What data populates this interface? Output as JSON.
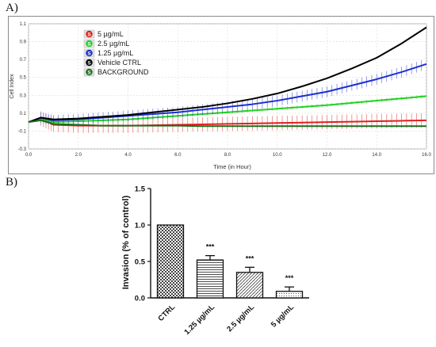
{
  "panels": {
    "a": "A)",
    "b": "B)"
  },
  "chart_data": [
    {
      "type": "line",
      "xlabel": "Time (in Hour)",
      "ylabel": "Cell Index",
      "xlim": [
        0,
        16
      ],
      "ylim": [
        -0.3,
        1.1
      ],
      "xticks": [
        "0.0",
        "2.0",
        "4.0",
        "6.0",
        "8.0",
        "10.0",
        "12.0",
        "14.0",
        "16.0"
      ],
      "yticks": [
        "-0.3",
        "-0.1",
        "0.1",
        "0.3",
        "0.5",
        "0.7",
        "0.9",
        "1.1"
      ],
      "grid": true,
      "legend_position": "top-left",
      "x": [
        0,
        0.5,
        1,
        2,
        3,
        4,
        5,
        6,
        7,
        8,
        9,
        10,
        11,
        12,
        13,
        14,
        15,
        16
      ],
      "series": [
        {
          "name": "5 µg/mL",
          "badge": "S",
          "color": "#e02020",
          "values": [
            0.0,
            0.04,
            -0.03,
            -0.04,
            -0.04,
            -0.04,
            -0.035,
            -0.03,
            -0.025,
            -0.02,
            -0.015,
            -0.01,
            -0.005,
            0.0,
            0.005,
            0.01,
            0.015,
            0.02
          ],
          "error": 0.08
        },
        {
          "name": "2.5 µg/mL",
          "badge": "S",
          "color": "#22d022",
          "values": [
            0.0,
            0.04,
            0.0,
            0.01,
            0.02,
            0.03,
            0.05,
            0.07,
            0.09,
            0.11,
            0.13,
            0.15,
            0.17,
            0.19,
            0.215,
            0.24,
            0.265,
            0.29
          ],
          "error": 0.02
        },
        {
          "name": "1.25 µg/mL",
          "badge": "S",
          "color": "#1c2fd0",
          "values": [
            0.0,
            0.05,
            0.02,
            0.03,
            0.05,
            0.07,
            0.09,
            0.11,
            0.14,
            0.17,
            0.2,
            0.24,
            0.29,
            0.34,
            0.41,
            0.48,
            0.56,
            0.65
          ],
          "error": 0.06
        },
        {
          "name": "Vehicle CTRL",
          "badge": "S",
          "color": "#000000",
          "values": [
            0.0,
            0.05,
            0.03,
            0.04,
            0.06,
            0.08,
            0.11,
            0.14,
            0.17,
            0.21,
            0.26,
            0.32,
            0.4,
            0.49,
            0.6,
            0.72,
            0.88,
            1.06
          ],
          "error": 0
        },
        {
          "name": "BACKGROUND",
          "badge": "S",
          "color": "#1b6e1b",
          "values": [
            0.0,
            0.02,
            -0.02,
            -0.03,
            -0.04,
            -0.04,
            -0.04,
            -0.04,
            -0.045,
            -0.045,
            -0.045,
            -0.045,
            -0.045,
            -0.045,
            -0.045,
            -0.045,
            -0.045,
            -0.045
          ],
          "error": 0
        }
      ]
    },
    {
      "type": "bar",
      "ylabel": "Invasion (% of control)",
      "ylim": [
        0,
        1.5
      ],
      "yticks": [
        "0.0",
        "0.5",
        "1.0",
        "1.5"
      ],
      "categories": [
        "CTRL",
        "1.25  µg/mL",
        "2.5  µg/mL",
        "5  µg/mL"
      ],
      "values": [
        1.0,
        0.52,
        0.35,
        0.09
      ],
      "errors": [
        0,
        0.06,
        0.07,
        0.06
      ],
      "annotations": [
        "",
        "***",
        "***",
        "***"
      ]
    }
  ]
}
